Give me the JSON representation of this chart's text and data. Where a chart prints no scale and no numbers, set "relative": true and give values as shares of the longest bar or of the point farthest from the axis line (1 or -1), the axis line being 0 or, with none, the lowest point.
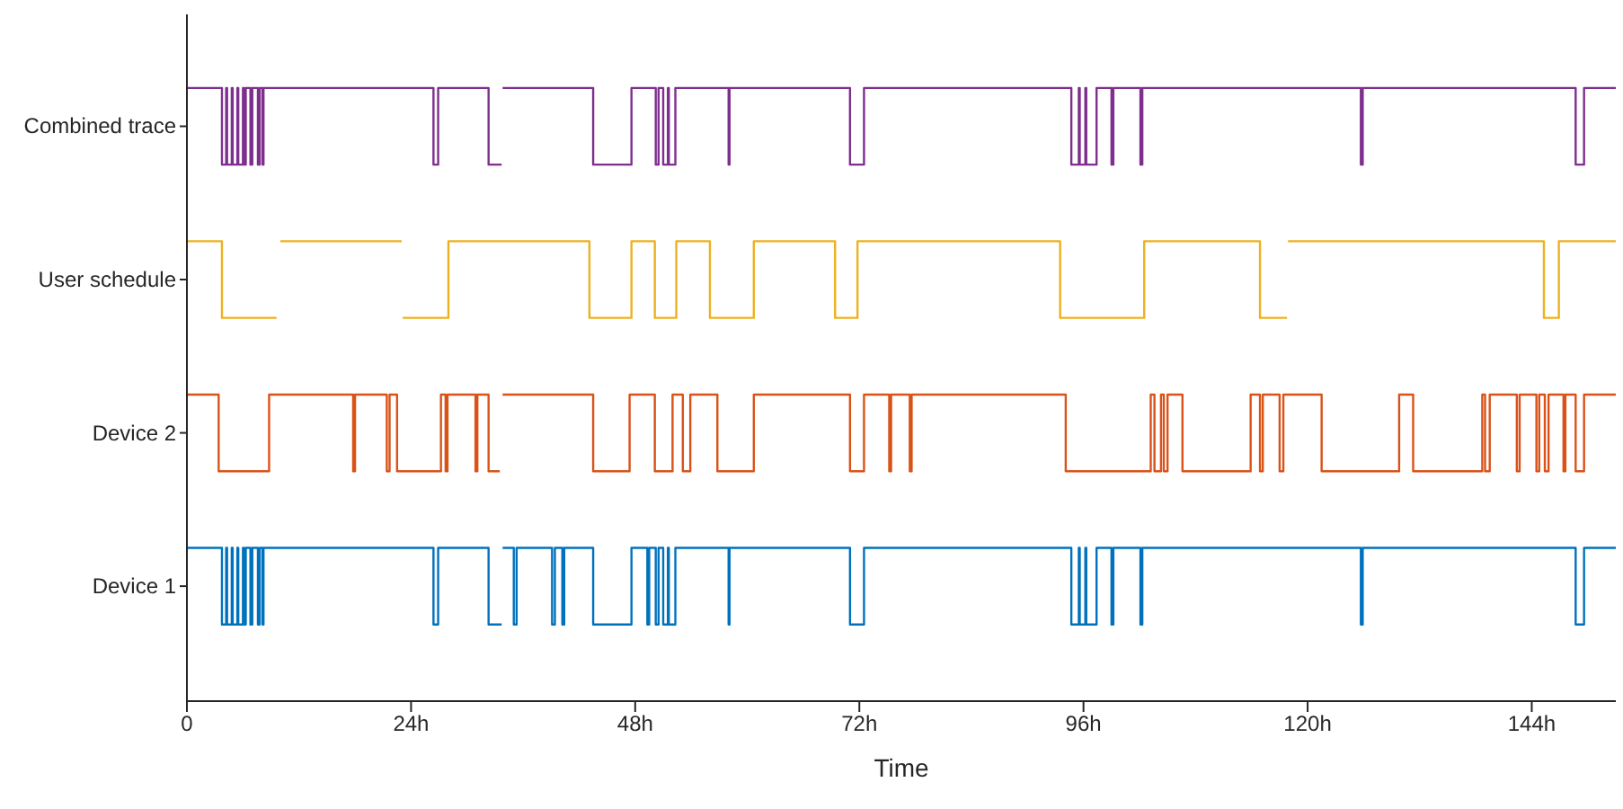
{
  "chart_data": {
    "type": "step",
    "xlabel": "Time",
    "relative": true,
    "xlim": [
      0,
      153
    ],
    "xticks": [
      0,
      {
        "value": 24,
        "label": "24h"
      },
      {
        "value": 48,
        "label": "48h"
      },
      {
        "value": 72,
        "label": "72h"
      },
      {
        "value": 96,
        "label": "96h"
      },
      {
        "value": 120,
        "label": "120h"
      },
      {
        "value": 144,
        "label": "144h"
      }
    ],
    "grid": false,
    "legend": false,
    "series": [
      {
        "name": "Device 1",
        "color": "#0072bd",
        "x": [
          0,
          3.75,
          4.2,
          4.3,
          4.8,
          4.9,
          5.4,
          5.5,
          6.0,
          6.1,
          6.3,
          6.8,
          7.0,
          7.6,
          7.8,
          8.1,
          8.2,
          26.4,
          26.9,
          32.3,
          33.7,
          33.8,
          35.0,
          35.3,
          39.1,
          39.4,
          40.2,
          40.4,
          43.5,
          47.6,
          49.3,
          49.5,
          50.2,
          50.5,
          51.0,
          51.5,
          51.6,
          52.3,
          58.0,
          58.1,
          71.0,
          72.5,
          94.7,
          95.5,
          95.6,
          96.2,
          96.3,
          97.4,
          99.0,
          99.2,
          102.1,
          102.3,
          125.7,
          125.9,
          148.7,
          149.6,
          153
        ],
        "values": [
          0.25,
          0.125,
          0.25,
          0.125,
          0.25,
          0.125,
          0.25,
          0.125,
          0.25,
          0.125,
          0.25,
          0.125,
          0.25,
          0.125,
          0.25,
          0.125,
          0.25,
          0.125,
          0.25,
          0.125,
          null,
          0.25,
          0.125,
          0.25,
          0.125,
          0.25,
          0.125,
          0.25,
          0.125,
          0.25,
          0.125,
          0.25,
          0.125,
          0.25,
          0.125,
          0.25,
          0.125,
          0.25,
          0.125,
          0.25,
          0.125,
          0.25,
          0.125,
          0.25,
          0.125,
          0.25,
          0.125,
          0.25,
          0.125,
          0.25,
          0.125,
          0.25,
          0.125,
          0.25,
          0.125,
          0.25,
          0.25
        ]
      },
      {
        "name": "Device 2",
        "color": "#d95319",
        "x": [
          0,
          3.4,
          8.8,
          17.8,
          18.0,
          21.4,
          21.7,
          22.5,
          27.2,
          27.7,
          27.9,
          30.9,
          31.1,
          32.3,
          33.5,
          33.8,
          43.5,
          47.4,
          50.1,
          52.0,
          53.1,
          53.9,
          56.8,
          60.7,
          71.0,
          72.5,
          75.2,
          75.4,
          77.4,
          77.6,
          94.1,
          103.2,
          103.6,
          104.3,
          104.6,
          105.0,
          106.6,
          113.9,
          114.9,
          115.2,
          117.0,
          117.4,
          121.5,
          129.8,
          131.3,
          138.7,
          139.0,
          139.5,
          142.4,
          142.7,
          144.5,
          144.8,
          145.4,
          145.8,
          147.4,
          147.6,
          148.7,
          149.6,
          153
        ],
        "values": [
          0.5,
          0.375,
          0.5,
          0.375,
          0.5,
          0.375,
          0.5,
          0.375,
          0.5,
          0.375,
          0.5,
          0.375,
          0.5,
          0.375,
          null,
          0.5,
          0.375,
          0.5,
          0.375,
          0.5,
          0.375,
          0.5,
          0.375,
          0.5,
          0.375,
          0.5,
          0.375,
          0.5,
          0.375,
          0.5,
          0.375,
          0.5,
          0.375,
          0.5,
          0.375,
          0.5,
          0.375,
          0.5,
          0.375,
          0.5,
          0.375,
          0.5,
          0.375,
          0.5,
          0.375,
          0.5,
          0.375,
          0.5,
          0.375,
          0.5,
          0.375,
          0.5,
          0.375,
          0.5,
          0.375,
          0.5,
          0.375,
          0.5,
          0.5
        ]
      },
      {
        "name": "User schedule",
        "color": "#edb120",
        "x": [
          0,
          3.75,
          9.6,
          10.0,
          23.0,
          23.1,
          28.0,
          43.1,
          47.6,
          50.1,
          52.4,
          56.0,
          60.7,
          69.4,
          71.8,
          93.5,
          102.5,
          114.9,
          117.8,
          117.9,
          145.3,
          146.9,
          153
        ],
        "values": [
          0.75,
          0.625,
          null,
          0.75,
          null,
          0.625,
          0.75,
          0.625,
          0.75,
          0.625,
          0.75,
          0.625,
          0.75,
          0.625,
          0.75,
          0.625,
          0.75,
          0.625,
          null,
          0.75,
          0.625,
          0.75,
          0.75
        ]
      },
      {
        "name": "Combined trace",
        "color": "#7e2f8e",
        "x": [
          0,
          3.75,
          4.2,
          4.3,
          4.8,
          4.9,
          5.4,
          5.5,
          6.0,
          6.1,
          6.3,
          6.8,
          7.0,
          7.6,
          7.8,
          8.1,
          8.2,
          26.4,
          26.9,
          32.3,
          33.7,
          33.8,
          43.5,
          47.6,
          50.2,
          50.5,
          51.0,
          51.5,
          51.6,
          52.3,
          58.0,
          58.1,
          71.0,
          72.5,
          94.7,
          95.5,
          95.6,
          96.2,
          96.3,
          97.4,
          99.0,
          99.2,
          102.1,
          102.3,
          125.7,
          125.9,
          148.7,
          149.6,
          153
        ],
        "values": [
          1,
          0.875,
          1,
          0.875,
          1,
          0.875,
          1,
          0.875,
          1,
          0.875,
          1,
          0.875,
          1,
          0.875,
          1,
          0.875,
          1,
          0.875,
          1,
          0.875,
          null,
          1,
          0.875,
          1,
          0.875,
          1,
          0.875,
          1,
          0.875,
          1,
          0.875,
          1,
          0.875,
          1,
          0.875,
          1,
          0.875,
          1,
          0.875,
          1,
          0.875,
          1,
          0.875,
          1,
          0.875,
          1,
          0.875,
          1,
          1
        ]
      }
    ]
  }
}
